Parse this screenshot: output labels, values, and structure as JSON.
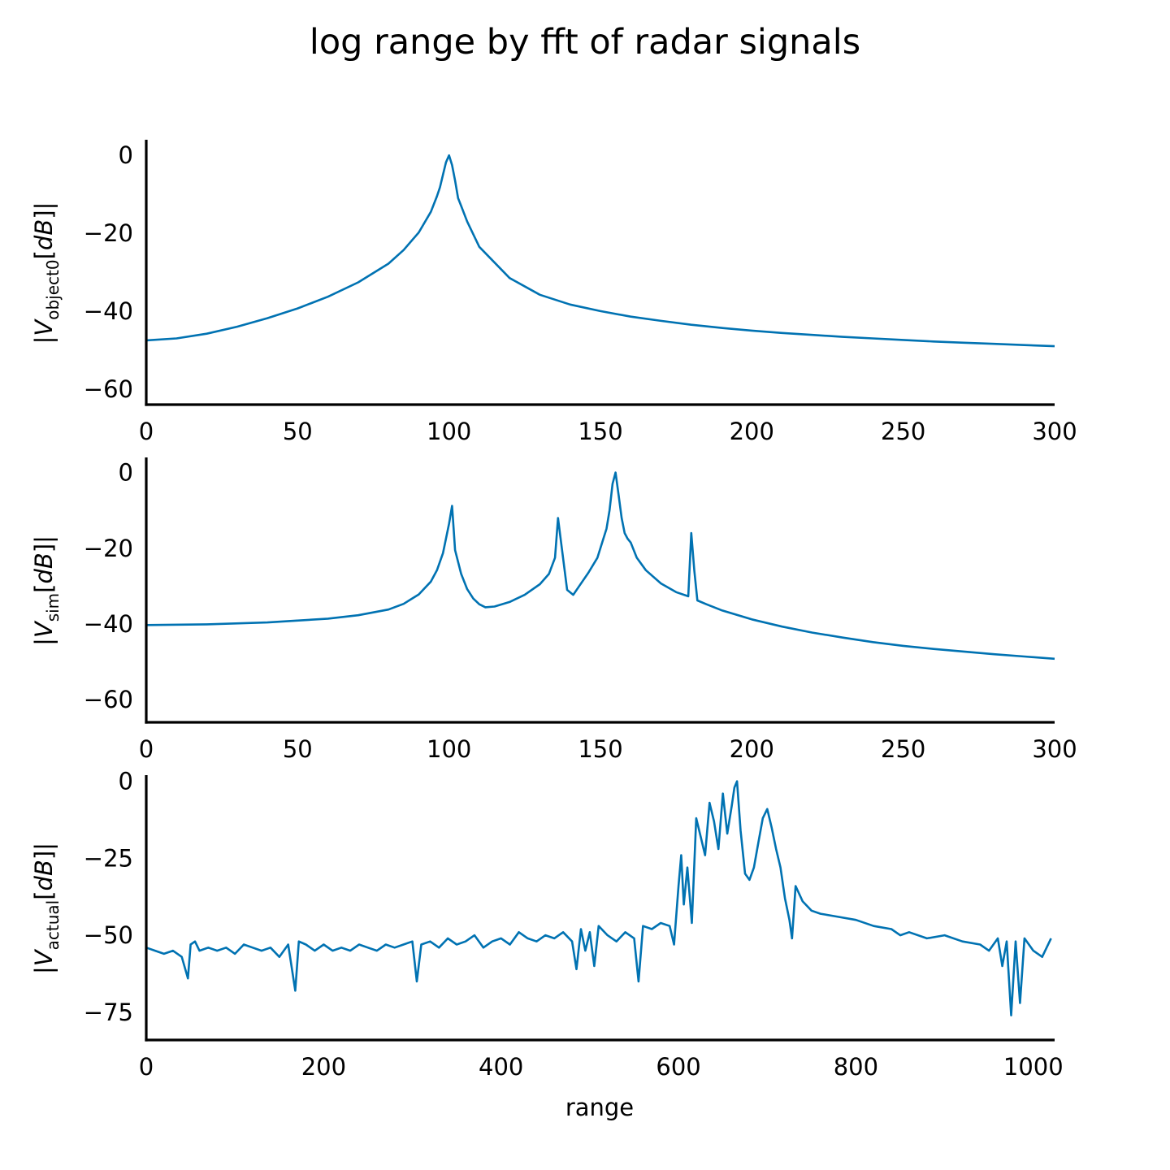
{
  "figure": {
    "title": "log range by fft of radar signals",
    "line_color": "#0072b2"
  },
  "chart_data": [
    {
      "type": "line",
      "title": "",
      "xlabel": "",
      "ylabel": "|V_object0[dB]|",
      "ylabel_parts": {
        "open": "|",
        "var": "V",
        "sub": "object0",
        "bracket_open": "[",
        "unit": "dB",
        "bracket_close": "]",
        "close": "|"
      },
      "xlim": [
        0,
        300
      ],
      "ylim": [
        -64,
        4
      ],
      "xticks": [
        0,
        50,
        100,
        150,
        200,
        250,
        300
      ],
      "xtick_labels": [
        "0",
        "50",
        "100",
        "150",
        "200",
        "250",
        "300"
      ],
      "yticks": [
        0,
        -20,
        -40,
        -60
      ],
      "ytick_labels": [
        "0",
        "−20",
        "−40",
        "−60"
      ],
      "grid": false,
      "series": [
        {
          "x": [
            0,
            10,
            20,
            30,
            40,
            50,
            60,
            70,
            80,
            85,
            90,
            94,
            96,
            97,
            98,
            99,
            100,
            101,
            102,
            103,
            104,
            106,
            110,
            120,
            130,
            140,
            150,
            160,
            170,
            180,
            190,
            200,
            210,
            220,
            230,
            240,
            250,
            260,
            270,
            280,
            290,
            300
          ],
          "y": [
            -47.5,
            -47.0,
            -45.8,
            -44.0,
            -41.8,
            -39.3,
            -36.3,
            -32.6,
            -27.8,
            -24.3,
            -19.8,
            -14.5,
            -10.5,
            -8.2,
            -5.0,
            -1.8,
            0.0,
            -2.5,
            -6.5,
            -11.0,
            -13.0,
            -17.0,
            -23.5,
            -31.5,
            -35.8,
            -38.3,
            -40.0,
            -41.4,
            -42.5,
            -43.5,
            -44.3,
            -45.0,
            -45.6,
            -46.1,
            -46.6,
            -47.0,
            -47.4,
            -47.8,
            -48.1,
            -48.4,
            -48.7,
            -49.0
          ]
        }
      ]
    },
    {
      "type": "line",
      "title": "",
      "xlabel": "",
      "ylabel": "|V_sim[dB]|",
      "ylabel_parts": {
        "open": "|",
        "var": "V",
        "sub": "sim",
        "bracket_open": "[",
        "unit": "dB",
        "bracket_close": "]",
        "close": "|"
      },
      "xlim": [
        0,
        300
      ],
      "ylim": [
        -66,
        4
      ],
      "xticks": [
        0,
        50,
        100,
        150,
        200,
        250,
        300
      ],
      "xtick_labels": [
        "0",
        "50",
        "100",
        "150",
        "200",
        "250",
        "300"
      ],
      "yticks": [
        0,
        -20,
        -40,
        -60
      ],
      "ytick_labels": [
        "0",
        "−20",
        "−40",
        "−60"
      ],
      "grid": false,
      "series": [
        {
          "x": [
            0,
            20,
            40,
            60,
            70,
            80,
            85,
            90,
            94,
            96,
            98,
            100,
            101,
            102,
            104,
            106,
            108,
            110,
            112,
            115,
            120,
            125,
            130,
            133,
            135,
            136,
            137,
            139,
            141,
            143,
            146,
            149,
            152,
            153,
            154,
            155,
            156,
            157,
            158,
            159,
            160,
            162,
            165,
            170,
            175,
            179,
            180,
            181,
            182,
            185,
            190,
            200,
            210,
            220,
            230,
            240,
            250,
            260,
            270,
            280,
            290,
            300
          ],
          "y": [
            -40.3,
            -40.1,
            -39.6,
            -38.6,
            -37.7,
            -36.2,
            -34.7,
            -32.2,
            -28.8,
            -25.8,
            -21.3,
            -13.5,
            -8.8,
            -20.5,
            -26.8,
            -30.8,
            -33.3,
            -34.8,
            -35.6,
            -35.4,
            -34.2,
            -32.3,
            -29.5,
            -26.8,
            -22.5,
            -12.0,
            -18.5,
            -31.0,
            -32.3,
            -30.0,
            -26.5,
            -22.5,
            -14.8,
            -10.0,
            -3.0,
            0.0,
            -6.0,
            -12.0,
            -16.0,
            -17.5,
            -18.5,
            -22.5,
            -25.8,
            -29.3,
            -31.6,
            -32.7,
            -16.0,
            -25.8,
            -33.8,
            -34.8,
            -36.4,
            -38.8,
            -40.7,
            -42.3,
            -43.6,
            -44.8,
            -45.8,
            -46.6,
            -47.3,
            -48.0,
            -48.6,
            -49.2
          ]
        }
      ]
    },
    {
      "type": "line",
      "title": "",
      "xlabel": "range",
      "ylabel": "|V_actual[dB]|",
      "ylabel_parts": {
        "open": "|",
        "var": "V",
        "sub": "actual",
        "bracket_open": "[",
        "unit": "dB",
        "bracket_close": "]",
        "close": "|"
      },
      "xlim": [
        0,
        1024
      ],
      "ylim": [
        -84,
        2
      ],
      "xticks": [
        0,
        200,
        400,
        600,
        800,
        1000
      ],
      "xtick_labels": [
        "0",
        "200",
        "400",
        "600",
        "800",
        "1000"
      ],
      "yticks": [
        0,
        -25,
        -50,
        -75
      ],
      "ytick_labels": [
        "0",
        "−25",
        "−50",
        "−75"
      ],
      "grid": false,
      "series": [
        {
          "x": [
            0,
            10,
            20,
            30,
            40,
            47,
            50,
            55,
            60,
            70,
            80,
            90,
            100,
            110,
            120,
            130,
            140,
            150,
            160,
            168,
            172,
            180,
            190,
            200,
            210,
            220,
            230,
            240,
            250,
            260,
            270,
            280,
            290,
            300,
            305,
            310,
            320,
            330,
            340,
            350,
            360,
            370,
            380,
            390,
            400,
            410,
            420,
            430,
            440,
            450,
            460,
            470,
            480,
            485,
            490,
            495,
            500,
            505,
            510,
            520,
            530,
            540,
            550,
            555,
            560,
            570,
            580,
            590,
            595,
            600,
            603,
            606,
            610,
            615,
            620,
            625,
            630,
            635,
            640,
            645,
            650,
            655,
            660,
            663,
            666,
            670,
            675,
            680,
            685,
            690,
            695,
            700,
            705,
            710,
            715,
            720,
            725,
            728,
            732,
            740,
            750,
            760,
            780,
            800,
            820,
            840,
            850,
            860,
            880,
            900,
            920,
            940,
            950,
            960,
            965,
            970,
            975,
            980,
            985,
            990,
            1000,
            1010,
            1020
          ],
          "y": [
            -54,
            -55,
            -56,
            -55,
            -57,
            -64,
            -53,
            -52,
            -55,
            -54,
            -55,
            -54,
            -56,
            -53,
            -54,
            -55,
            -54,
            -57,
            -53,
            -68,
            -52,
            -53,
            -55,
            -53,
            -55,
            -54,
            -55,
            -53,
            -54,
            -55,
            -53,
            -54,
            -53,
            -52,
            -65,
            -53,
            -52,
            -54,
            -51,
            -53,
            -52,
            -50,
            -54,
            -52,
            -51,
            -53,
            -49,
            -51,
            -52,
            -50,
            -51,
            -49,
            -52,
            -61,
            -48,
            -55,
            -49,
            -60,
            -47,
            -50,
            -52,
            -49,
            -51,
            -65,
            -47,
            -48,
            -46,
            -47,
            -53,
            -34,
            -24,
            -40,
            -28,
            -46,
            -12,
            -18,
            -24,
            -7,
            -13,
            -22,
            -4,
            -17,
            -8,
            -2,
            0,
            -16,
            -30,
            -32,
            -28,
            -20,
            -12,
            -9,
            -15,
            -22,
            -28,
            -38,
            -45,
            -51,
            -34,
            -39,
            -42,
            -43,
            -44,
            -45,
            -47,
            -48,
            -50,
            -49,
            -51,
            -50,
            -52,
            -53,
            -55,
            -51,
            -60,
            -52,
            -76,
            -52,
            -72,
            -51,
            -55,
            -57,
            -51
          ]
        }
      ]
    }
  ]
}
